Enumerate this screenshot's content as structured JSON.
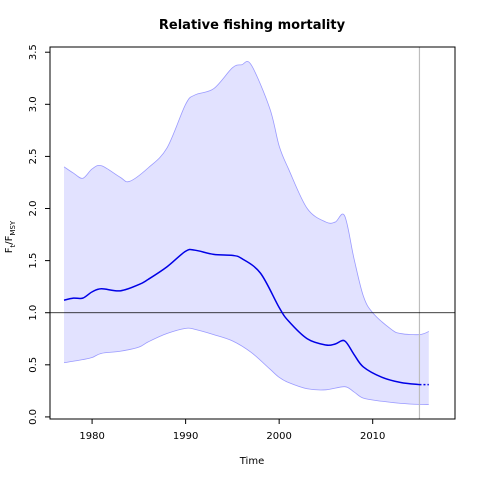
{
  "chart_data": {
    "type": "line",
    "title": "Relative fishing mortality",
    "xlabel": "Time",
    "ylabel_main": "F",
    "ylabel_sub1": "t",
    "ylabel_mid": "/F",
    "ylabel_sub2": "MSY",
    "xlim": [
      1975.5,
      2018.8
    ],
    "ylim": [
      -0.02,
      3.55
    ],
    "xticks": [
      1980,
      1990,
      2000,
      2010
    ],
    "xtick_labels": [
      "1980",
      "1990",
      "2000",
      "2010"
    ],
    "yticks": [
      0.0,
      0.5,
      1.0,
      1.5,
      2.0,
      2.5,
      3.0,
      3.5
    ],
    "ytick_labels": [
      "0.0",
      "0.5",
      "1.0",
      "1.5",
      "2.0",
      "2.5",
      "3.0",
      "3.5"
    ],
    "reference_line": 1.0,
    "vertical_marker_x": 2015,
    "colors": {
      "median": "#0000e6",
      "band_fill": "#e2e2ff",
      "band_edge": "#9a9aff",
      "reference": "#000000",
      "vertical_marker": "#bdbdbd"
    },
    "median": {
      "x": [
        1977,
        1978,
        1979,
        1980,
        1981,
        1983,
        1985,
        1986,
        1988,
        1990,
        1991,
        1993,
        1995,
        1996,
        1998,
        2000,
        2001,
        2003,
        2005,
        2006,
        2007,
        2008,
        2009,
        2011,
        2013,
        2015
      ],
      "y": [
        1.12,
        1.14,
        1.14,
        1.2,
        1.23,
        1.21,
        1.27,
        1.32,
        1.44,
        1.59,
        1.6,
        1.56,
        1.55,
        1.52,
        1.38,
        1.05,
        0.92,
        0.75,
        0.69,
        0.7,
        0.73,
        0.6,
        0.48,
        0.38,
        0.33,
        0.31
      ]
    },
    "median_projection": {
      "x": [
        2015,
        2016
      ],
      "y": [
        0.31,
        0.31
      ]
    },
    "band_upper": {
      "x": [
        1977,
        1978,
        1979,
        1980,
        1981,
        1983,
        1984,
        1986,
        1988,
        1990,
        1991,
        1993,
        1995,
        1996,
        1997,
        1999,
        2000,
        2001,
        2003,
        2005,
        2006,
        2007,
        2008,
        2009,
        2010,
        2012,
        2013,
        2015,
        2016
      ],
      "y": [
        2.4,
        2.34,
        2.29,
        2.38,
        2.41,
        2.3,
        2.26,
        2.39,
        2.58,
        3.0,
        3.09,
        3.15,
        3.35,
        3.38,
        3.38,
        2.96,
        2.6,
        2.38,
        2.0,
        1.87,
        1.87,
        1.93,
        1.52,
        1.16,
        1.0,
        0.84,
        0.8,
        0.79,
        0.82
      ]
    },
    "band_lower": {
      "x": [
        1977,
        1979,
        1980,
        1981,
        1983,
        1985,
        1986,
        1988,
        1990,
        1991,
        1993,
        1995,
        1997,
        1999,
        2000,
        2001,
        2003,
        2005,
        2007,
        2008,
        2009,
        2011,
        2013,
        2015,
        2016
      ],
      "y": [
        0.52,
        0.55,
        0.57,
        0.61,
        0.63,
        0.67,
        0.72,
        0.8,
        0.85,
        0.84,
        0.79,
        0.73,
        0.62,
        0.46,
        0.38,
        0.33,
        0.27,
        0.26,
        0.29,
        0.24,
        0.18,
        0.15,
        0.13,
        0.12,
        0.12
      ]
    }
  }
}
